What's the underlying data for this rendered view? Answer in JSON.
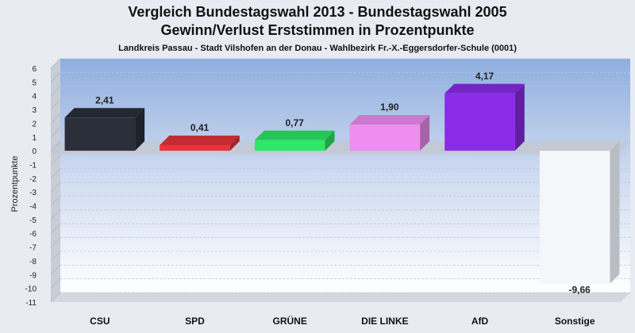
{
  "chart_data": {
    "type": "bar",
    "title": "Vergleich Bundestagswahl 2013 - Bundestagswahl 2005",
    "title2": "Gewinn/Verlust Erststimmen in Prozentpunkte",
    "subtitle": "Landkreis Passau - Stadt Vilshofen an der Donau - Wahlbezirk Fr.-X.-Eggersdorfer-Schule (0001)",
    "ylabel": "Prozentpunkte",
    "xlabel": "",
    "ylim": [
      -11,
      6
    ],
    "yticks": [
      6,
      5,
      4,
      3,
      2,
      1,
      0,
      -1,
      -2,
      -3,
      -4,
      -5,
      -6,
      -7,
      -8,
      -9,
      -10,
      -11
    ],
    "grid": true,
    "categories": [
      "CSU",
      "SPD",
      "GRÜNE",
      "DIE LINKE",
      "AfD",
      "Sonstige"
    ],
    "values": [
      2.41,
      0.41,
      0.77,
      1.9,
      4.17,
      -9.66
    ],
    "value_labels": [
      "2,41",
      "0,41",
      "0,77",
      "1,90",
      "4,17",
      "-9,66"
    ],
    "colors": [
      "#2a2f3a",
      "#e8333c",
      "#2ee866",
      "#ee8ef0",
      "#8a2be8",
      "#f4f6fa"
    ]
  }
}
